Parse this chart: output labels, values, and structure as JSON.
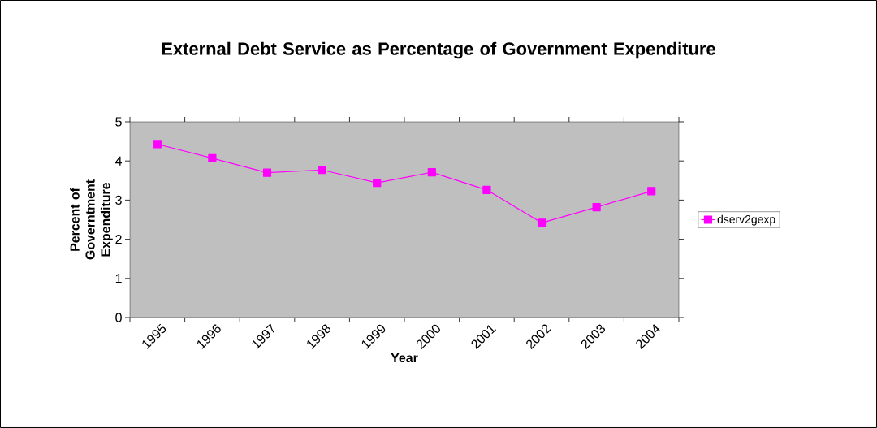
{
  "chart_data": {
    "type": "line",
    "title": "External Debt Service as Percentage of Government Expenditure",
    "xlabel": "Year",
    "ylabel": "Percent of Governtment Expenditure",
    "categories": [
      "1995",
      "1996",
      "1997",
      "1998",
      "1999",
      "2000",
      "2001",
      "2002",
      "2003",
      "2004"
    ],
    "series": [
      {
        "name": "dserv2gexp",
        "color": "#ff00ff",
        "values": [
          4.43,
          4.07,
          3.7,
          3.77,
          3.44,
          3.71,
          3.26,
          2.42,
          2.82,
          3.23
        ]
      }
    ],
    "ylim": [
      0,
      5
    ],
    "yticks": [
      0,
      1,
      2,
      3,
      4,
      5
    ],
    "legend": "right",
    "marker": "square",
    "line_style": "solid",
    "grid": false
  }
}
